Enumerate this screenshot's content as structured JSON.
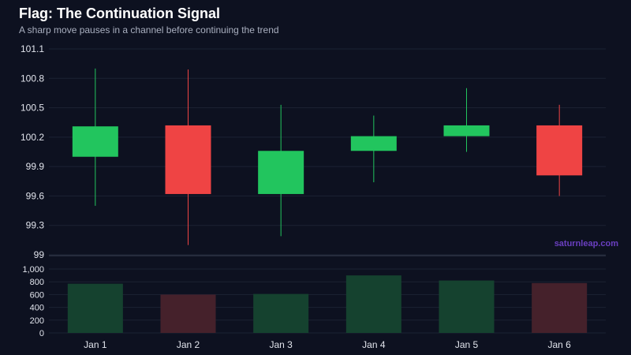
{
  "title": "Flag: The Continuation Signal",
  "subtitle": "A sharp move pauses in a channel before continuing the trend",
  "watermark": "saturnleap.com",
  "colors": {
    "background": "#0d1120",
    "bull": "#22c55e",
    "bear": "#ef4444",
    "bull_volume": "#15422f",
    "bear_volume": "#45212b",
    "grid": "#1c2233",
    "watermark": "#6a3fc0"
  },
  "chart_data": [
    {
      "type": "candlestick",
      "categories": [
        "Jan 1",
        "Jan 2",
        "Jan 3",
        "Jan 4",
        "Jan 5",
        "Jan 6"
      ],
      "open": [
        100.0,
        100.32,
        99.62,
        100.06,
        100.21,
        100.32
      ],
      "high": [
        100.9,
        100.89,
        100.53,
        100.42,
        100.7,
        100.53
      ],
      "low": [
        99.5,
        99.1,
        99.19,
        99.74,
        100.05,
        99.6
      ],
      "close": [
        100.31,
        99.62,
        100.06,
        100.21,
        100.32,
        99.81
      ],
      "ylim": [
        99,
        101.1
      ],
      "yticks": [
        "101.1",
        "100.8",
        "100.5",
        "100.2",
        "99.9",
        "99.6",
        "99.3",
        "99"
      ],
      "ytick_values": [
        101.1,
        100.8,
        100.5,
        100.2,
        99.9,
        99.6,
        99.3,
        99.0
      ],
      "grid": true
    },
    {
      "type": "bar",
      "name": "volume",
      "categories": [
        "Jan 1",
        "Jan 2",
        "Jan 3",
        "Jan 4",
        "Jan 5",
        "Jan 6"
      ],
      "values": [
        770,
        600,
        610,
        900,
        820,
        780
      ],
      "direction": [
        "up",
        "down",
        "up",
        "up",
        "up",
        "down"
      ],
      "ylim": [
        0,
        1000
      ],
      "yticks": [
        "1,000",
        "800",
        "600",
        "400",
        "200",
        "0"
      ],
      "ytick_values": [
        1000,
        800,
        600,
        400,
        200,
        0
      ]
    }
  ]
}
